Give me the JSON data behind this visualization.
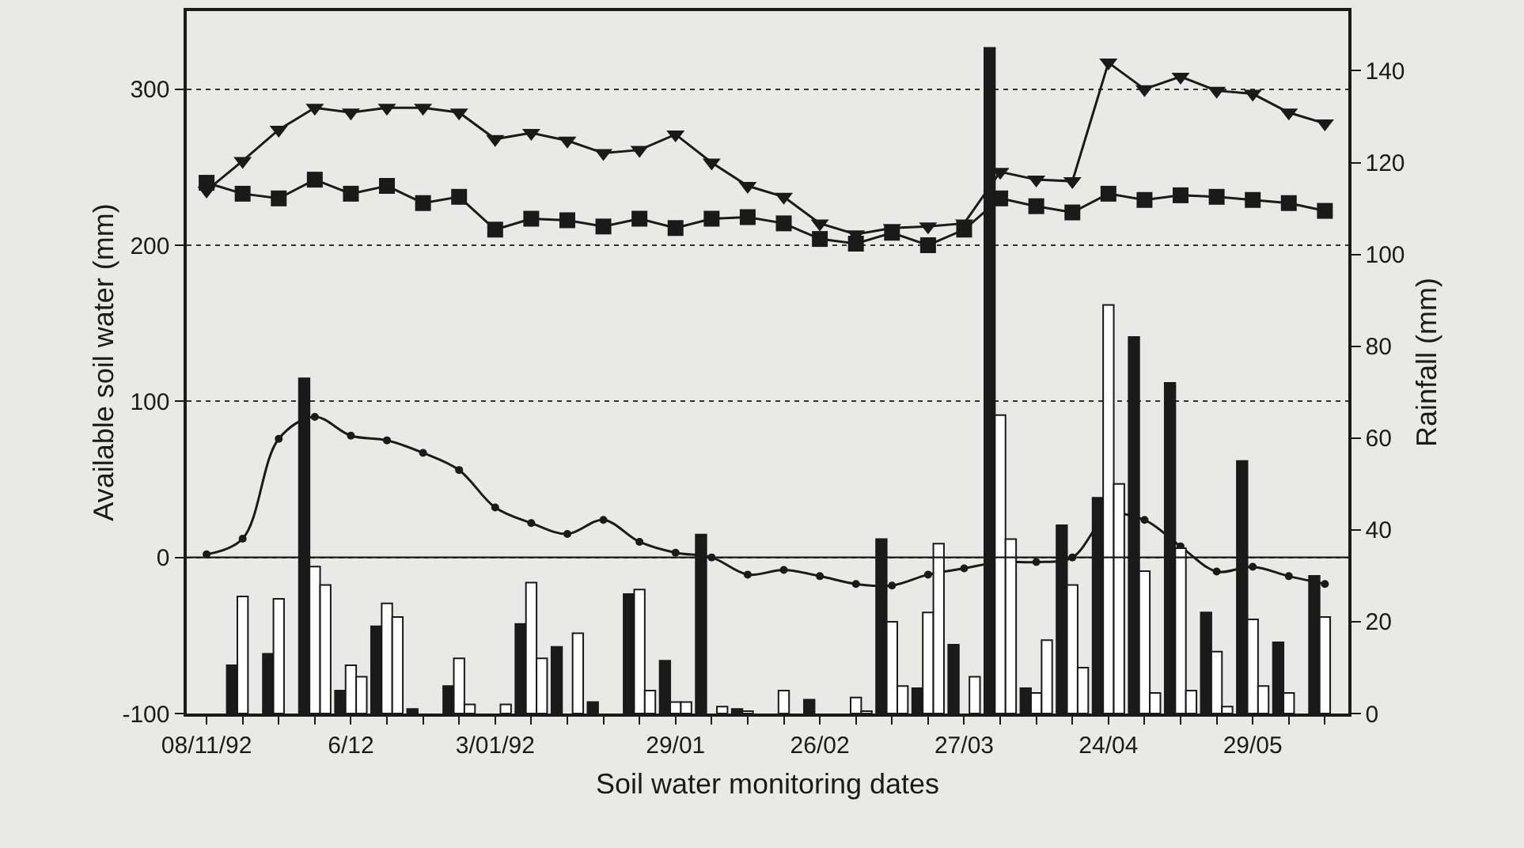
{
  "chart_data": {
    "type": "line",
    "xlabel": "Soil water monitoring dates",
    "ylabel": "Available soil water (mm)",
    "y2label": "Rainfall (mm)",
    "categories": [
      "08/11/92",
      null,
      null,
      null,
      "6/12",
      null,
      null,
      null,
      "3/01/92",
      null,
      null,
      null,
      null,
      "29/01",
      null,
      null,
      null,
      "26/02",
      null,
      null,
      null,
      "27/03",
      null,
      null,
      null,
      "24/04",
      null,
      null,
      null,
      "29/05",
      null,
      null
    ],
    "series": [
      {
        "type": "bar",
        "axis": "y2",
        "color": "#1a1a1a",
        "values": [
          null,
          10.5,
          13,
          73,
          5,
          19,
          1,
          6,
          null,
          19.5,
          14.5,
          2.5,
          26,
          11.5,
          39,
          1,
          null,
          3,
          null,
          38,
          5.5,
          15,
          145,
          5.5,
          41,
          47,
          82,
          72,
          22,
          55,
          15.5,
          30
        ]
      },
      {
        "type": "bar",
        "axis": "y2",
        "color": "#ffffff",
        "values": [
          null,
          25.5,
          25,
          32,
          10.5,
          24,
          null,
          12,
          null,
          28.5,
          null,
          null,
          27,
          2.5,
          null,
          0.5,
          5,
          null,
          3.5,
          20,
          22,
          null,
          65,
          4.5,
          28,
          89,
          31,
          36,
          13.5,
          20.5,
          4.5,
          21
        ]
      },
      {
        "type": "bar",
        "axis": "y2",
        "color": "#ffffff",
        "values": [
          null,
          null,
          null,
          28,
          8,
          21,
          null,
          2,
          2,
          12,
          17.5,
          null,
          5,
          2.5,
          1.5,
          null,
          null,
          null,
          0.5,
          6,
          37,
          8,
          38,
          16,
          10,
          50,
          4.5,
          5,
          1.5,
          6,
          null,
          null
        ]
      },
      {
        "marker": "square",
        "color": "#1a1a1a",
        "values": [
          240,
          233,
          230,
          242,
          233,
          238,
          227,
          231,
          210,
          217,
          216,
          212,
          217,
          211,
          217,
          218,
          214,
          204,
          201,
          208,
          200,
          210,
          230,
          225,
          221,
          233,
          229,
          232,
          231,
          229,
          227,
          222
        ]
      },
      {
        "marker": "triangle",
        "color": "#1a1a1a",
        "values": [
          235,
          254,
          274,
          288,
          285,
          288,
          288,
          285,
          268,
          272,
          267,
          259,
          261,
          271,
          253,
          238,
          231,
          214,
          207,
          211,
          212,
          214,
          247,
          242,
          241,
          317,
          300,
          308,
          299,
          297,
          285,
          278
        ]
      },
      {
        "marker": "circle",
        "color": "#1a1a1a",
        "values": [
          2,
          12,
          76,
          90,
          78,
          75,
          67,
          56,
          32,
          22,
          15,
          24,
          10,
          3,
          0,
          -11,
          -8,
          -12,
          -17,
          -18,
          -11,
          -7,
          -3,
          -3,
          0,
          27,
          24,
          7,
          -9,
          -6,
          -12,
          -17
        ]
      }
    ],
    "ylim": [
      -100,
      350
    ],
    "yticks": [
      -100,
      0,
      100,
      200,
      300
    ],
    "y2lim": [
      0,
      153
    ],
    "y2ticks": [
      0,
      20,
      40,
      60,
      80,
      100,
      120,
      140
    ],
    "grid": "y",
    "ref_lines": [
      {
        "axis": "y",
        "value": 0
      }
    ],
    "legend": false
  }
}
